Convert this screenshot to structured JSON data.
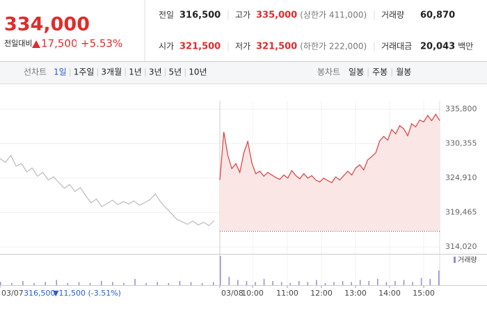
{
  "header": {
    "price": "334,000",
    "change_label": "전일대비",
    "change": "17,500",
    "change_pct": "+5.53%",
    "stats": [
      {
        "label": "전일",
        "value": "316,500",
        "color": "#222222"
      },
      {
        "label": "고가",
        "value": "335,000",
        "note": "(상한가 411,000)",
        "color": "#e12b2b"
      },
      {
        "label": "거래량",
        "value": "60,870",
        "color": "#222222"
      },
      {
        "label": "시가",
        "value": "321,500",
        "color": "#e12b2b"
      },
      {
        "label": "저가",
        "value": "321,500",
        "note": "(하한가 222,000)",
        "color": "#e12b2b"
      },
      {
        "label": "거래대금",
        "value": "20,043",
        "unit": "백만",
        "color": "#222222"
      }
    ]
  },
  "tabs": {
    "line_label": "선차트",
    "line_tabs": [
      "1일",
      "1주일",
      "3개월",
      "1년",
      "3년",
      "5년",
      "10년"
    ],
    "candle_label": "봉차트",
    "candle_tabs": [
      "일봉",
      "주봉",
      "월봉"
    ]
  },
  "chart_data": {
    "type": "line",
    "ylim": [
      314020,
      335800
    ],
    "yticks": [
      {
        "value": 335800,
        "label": "335,800"
      },
      {
        "value": 330355,
        "label": "330,355"
      },
      {
        "value": 324910,
        "label": "324,910"
      },
      {
        "value": 319465,
        "label": "319,465"
      },
      {
        "value": 314020,
        "label": "314,020"
      }
    ],
    "xticks": [
      "03/07",
      "03/08",
      "10:00",
      "11:00",
      "12:00",
      "13:00",
      "14:00",
      "15:00"
    ],
    "prev_close": {
      "value": 316500,
      "label": "316,500"
    },
    "prev_day_change": "▼11,500 (-3.51%)",
    "series": [
      {
        "color": "#bbbbbb",
        "values": [
          328000,
          327400,
          328500,
          326800,
          327200,
          325900,
          326500,
          325200,
          325800,
          324600,
          325100,
          324200,
          323300,
          323900,
          322800,
          323400,
          322100,
          321000,
          321600,
          320400,
          320900,
          321400,
          320700,
          321200,
          320800,
          321300,
          320600,
          321000,
          321500,
          322400,
          321100,
          320200,
          319300,
          318400,
          318000,
          317600,
          318100,
          317500,
          317900,
          317400,
          318200
        ]
      },
      {
        "color": "#e03a3a",
        "values": [
          324600,
          332200,
          328500,
          326400,
          327200,
          325800,
          328900,
          330700,
          327300,
          325600,
          326000,
          325200,
          325800,
          325400,
          325000,
          324700,
          325400,
          324900,
          326100,
          325300,
          324800,
          325600,
          324900,
          325300,
          324600,
          324300,
          324900,
          324500,
          324200,
          325100,
          324600,
          325300,
          326000,
          325400,
          326500,
          327000,
          326200,
          327800,
          328300,
          328900,
          330800,
          331500,
          330900,
          332600,
          331900,
          333200,
          332700,
          331600,
          333500,
          333000,
          334100,
          333800,
          334800,
          334000,
          335000,
          334000
        ]
      }
    ],
    "volume": {
      "name": "거래량",
      "color": "#9a86d6",
      "values": [
        3,
        2,
        4,
        2,
        3,
        5,
        2,
        3,
        2,
        4,
        3,
        2,
        6,
        2,
        3,
        2,
        4,
        3,
        2,
        3,
        28,
        8,
        5,
        4,
        3,
        6,
        4,
        3,
        2,
        4,
        3,
        5,
        2,
        3,
        4,
        3,
        5,
        4,
        6,
        3,
        4,
        5,
        3,
        7,
        6,
        14
      ]
    }
  }
}
